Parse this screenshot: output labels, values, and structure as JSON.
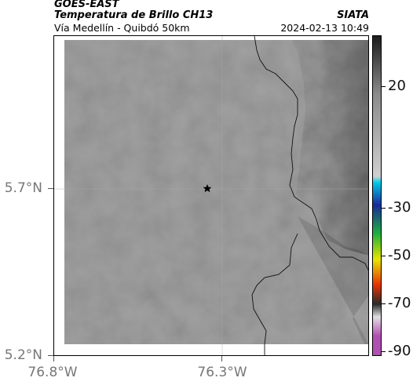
{
  "header": {
    "satellite": "GOES-EAST",
    "title": "Temperatura de Brillo CH13",
    "subtitle": "Vía Medellín - Quibdó 50km",
    "organization": "SIATA",
    "datetime": "2024-02-13 10:49"
  },
  "map": {
    "y_ticks": [
      {
        "label": "5.7°N",
        "value": 5.7
      },
      {
        "label": "5.2°N",
        "value": 5.2
      }
    ],
    "x_ticks": [
      {
        "label": "76.8°W",
        "value": -76.8
      },
      {
        "label": "76.3°W",
        "value": -76.3
      }
    ],
    "marker": {
      "symbol": "star"
    }
  },
  "colorbar": {
    "ticks": [
      {
        "label": "20",
        "value": 20
      },
      {
        "label": "-30",
        "value": -30
      },
      {
        "label": "-50",
        "value": -50
      },
      {
        "label": "-70",
        "value": -70
      },
      {
        "label": "-90",
        "value": -90
      }
    ],
    "colors": [
      "#1c1c1c",
      "#8a8a8a",
      "#d0d0d0",
      "#00c8e6",
      "#1a2a9a",
      "#20b040",
      "#e6e600",
      "#e63200",
      "#2a2a2a",
      "#e0e0e0",
      "#b050b0"
    ]
  }
}
